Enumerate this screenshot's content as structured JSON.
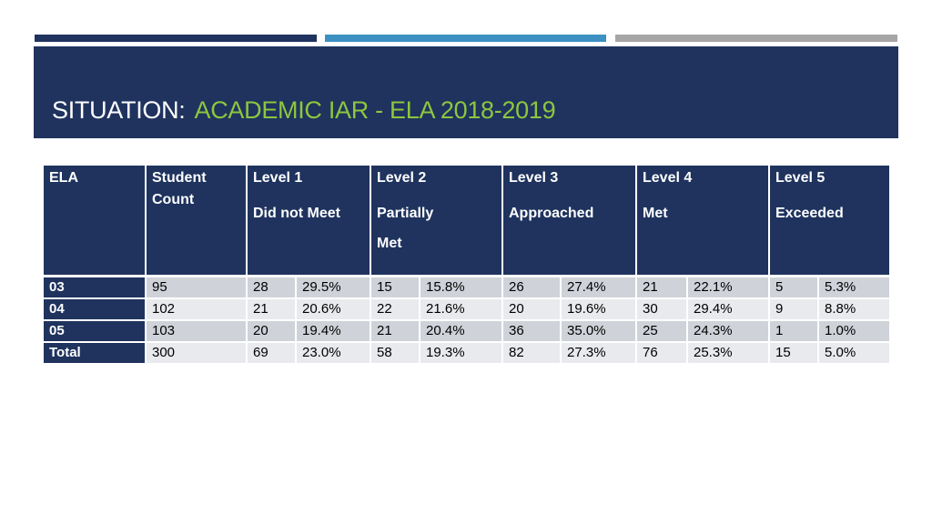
{
  "colors": {
    "navy": "#1F335E",
    "accent_blue": "#3C91C2",
    "gray": "#A6A6A6",
    "title_green": "#8DC63F",
    "row_odd": "#CFD3D9",
    "row_even": "#E8EAED"
  },
  "title": {
    "prefix": "SITUATION:",
    "main": "ACADEMIC IAR - ELA 2018-2019"
  },
  "table": {
    "headers": [
      {
        "line1": "ELA",
        "line2": "",
        "line3": ""
      },
      {
        "line1": "Student",
        "line2": "Count",
        "line3": ""
      },
      {
        "line1": "Level 1",
        "line2": "Did not Meet",
        "line3": ""
      },
      {
        "line1": "Level 2",
        "line2": "Partially",
        "line3": "Met"
      },
      {
        "line1": "Level 3",
        "line2": "Approached",
        "line3": ""
      },
      {
        "line1": "Level 4",
        "line2": "Met",
        "line3": ""
      },
      {
        "line1": "Level 5",
        "line2": "Exceeded",
        "line3": ""
      }
    ],
    "rows": [
      {
        "label": "03",
        "count": "95",
        "cells": [
          "28",
          "29.5%",
          "15",
          "15.8%",
          "26",
          "27.4%",
          "21",
          "22.1%",
          "5",
          "5.3%"
        ]
      },
      {
        "label": "04",
        "count": "102",
        "cells": [
          "21",
          "20.6%",
          "22",
          "21.6%",
          "20",
          "19.6%",
          "30",
          "29.4%",
          "9",
          "8.8%"
        ]
      },
      {
        "label": "05",
        "count": "103",
        "cells": [
          "20",
          "19.4%",
          "21",
          "20.4%",
          "36",
          "35.0%",
          "25",
          "24.3%",
          "1",
          "1.0%"
        ]
      },
      {
        "label": "Total",
        "count": "300",
        "cells": [
          "69",
          "23.0%",
          "58",
          "19.3%",
          "82",
          "27.3%",
          "76",
          "25.3%",
          "15",
          "5.0%"
        ]
      }
    ]
  }
}
